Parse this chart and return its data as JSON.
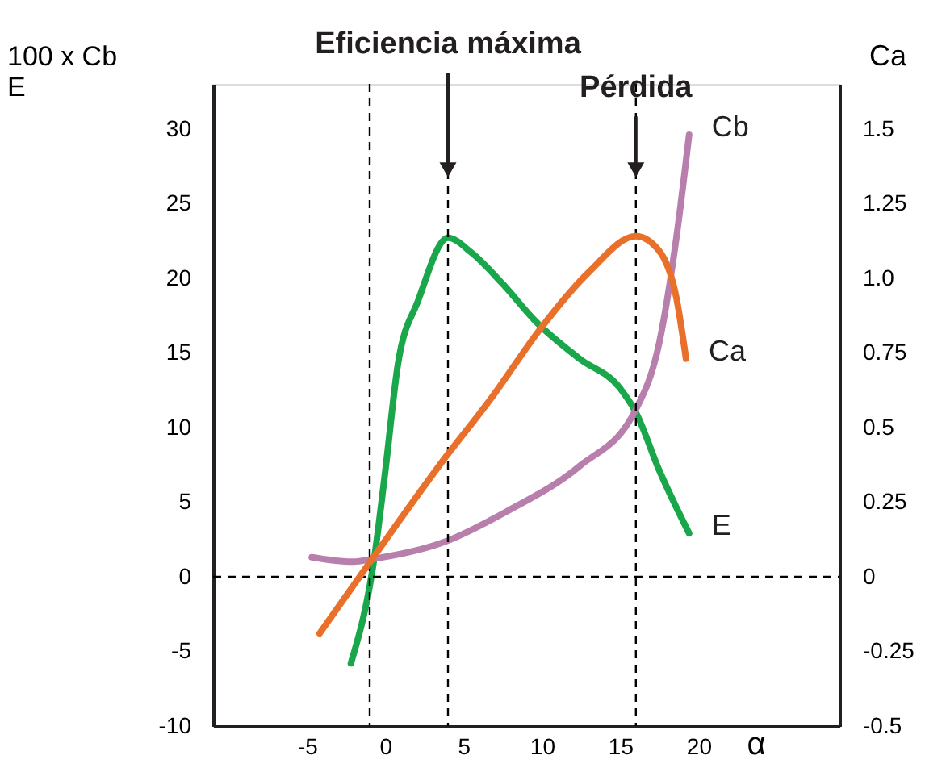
{
  "chart_data": {
    "type": "line",
    "xlabel": "α",
    "ylabel": "100 x Cb\nE",
    "y2label": "Ca",
    "xlim": [
      -11,
      29
    ],
    "xticks": [
      -5,
      0,
      5,
      10,
      15,
      20
    ],
    "ylim": [
      -10,
      33
    ],
    "yticks": [
      -10,
      -5,
      0,
      5,
      10,
      15,
      20,
      25,
      30
    ],
    "y2lim": [
      -0.5,
      1.65
    ],
    "y2ticks": [
      -0.5,
      -0.25,
      0,
      0.25,
      0.5,
      0.75,
      {
        "value": 1,
        "label": "1.0"
      },
      1.25,
      1.5
    ],
    "grid": false,
    "series": [
      {
        "name": "E",
        "color": "#1aa64a",
        "x": [
          -2.2,
          -0.7,
          0,
          0.8,
          2.1,
          4,
          5.5,
          7.5,
          9.6,
          12.4,
          15,
          16,
          17.5,
          19.4
        ],
        "values": [
          -5.8,
          1.3,
          7.1,
          14.2,
          18.5,
          22.7,
          21.7,
          19.6,
          17.1,
          14.6,
          12.6,
          11,
          7.1,
          2.9
        ]
      },
      {
        "name": "Cb",
        "color": "#b87fad",
        "x": [
          -4.7,
          -2.1,
          -0.7,
          3.7,
          7.8,
          12.4,
          16,
          17.5,
          18.6,
          19.4
        ],
        "values": [
          1.3,
          1.0,
          1.2,
          2.3,
          4.4,
          7.4,
          11.2,
          15.7,
          22.8,
          29.6
        ]
      },
      {
        "name": "Ca",
        "color": "#e8702a",
        "axis": "y2",
        "x": [
          -4.2,
          -0.7,
          3.7,
          6.8,
          9.9,
          13,
          16,
          17.5,
          18.6,
          19.2
        ],
        "values": [
          -0.19,
          0.07,
          0.39,
          0.6,
          0.83,
          1.02,
          1.14,
          1.09,
          0.93,
          0.73
        ]
      }
    ],
    "ref_lines": [
      {
        "axis": "x",
        "value": -1,
        "line_style": "dashed",
        "color": "#000000"
      },
      {
        "axis": "x",
        "value": 4,
        "line_style": "dashed",
        "color": "#000000"
      },
      {
        "axis": "x",
        "value": 16,
        "line_style": "dashed",
        "color": "#000000"
      },
      {
        "axis": "y",
        "value": 0,
        "line_style": "dashed",
        "color": "#000000"
      }
    ],
    "annotations": [
      {
        "text": "Eficiencia máxima",
        "x": 4,
        "y": 26.5
      },
      {
        "text": "Pérdida",
        "x": 16,
        "y": 26.5
      }
    ]
  }
}
